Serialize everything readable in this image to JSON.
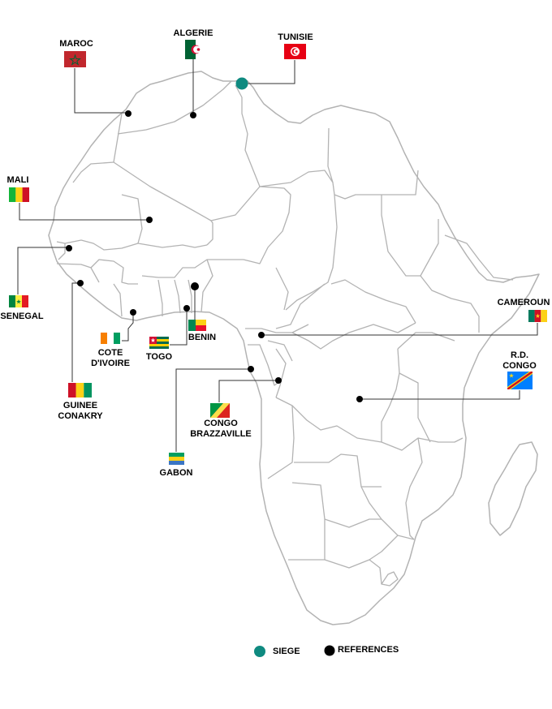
{
  "countries": {
    "maroc": {
      "label": "MAROC",
      "flag_colors": [
        "#c1272d",
        "#006233"
      ]
    },
    "algerie": {
      "label": "ALGERIE",
      "flag_colors": [
        "#006233",
        "#ffffff",
        "#d21034"
      ]
    },
    "tunisie": {
      "label": "TUNISIE",
      "flag_colors": [
        "#e70013",
        "#ffffff"
      ]
    },
    "mali": {
      "label": "MALI",
      "flag_colors": [
        "#14b53a",
        "#fcd116",
        "#ce1126"
      ]
    },
    "senegal": {
      "label": "SENEGAL",
      "flag_colors": [
        "#00853f",
        "#fdef42",
        "#e31b23"
      ]
    },
    "cote_divoire": {
      "line1": "COTE",
      "line2": "D'IVOIRE",
      "flag_colors": [
        "#f77f00",
        "#ffffff",
        "#009e60"
      ]
    },
    "guinee": {
      "line1": "GUINEE",
      "line2": "CONAKRY",
      "flag_colors": [
        "#ce1126",
        "#fcd116",
        "#009460"
      ]
    },
    "togo": {
      "label": "TOGO",
      "flag_colors": [
        "#006a4e",
        "#ffce00",
        "#d21034"
      ]
    },
    "benin": {
      "label": "BENIN",
      "flag_colors": [
        "#008751",
        "#fcd116",
        "#e8112d"
      ]
    },
    "cameroun": {
      "label": "CAMEROUN",
      "flag_colors": [
        "#007a5e",
        "#ce1126",
        "#fcd116"
      ]
    },
    "rd_congo": {
      "line1": "R.D.",
      "line2": "CONGO",
      "flag_colors": [
        "#007fff",
        "#f7d618",
        "#ce1021"
      ]
    },
    "congo_brazzaville": {
      "line1": "CONGO",
      "line2": "BRAZZAVILLE",
      "flag_colors": [
        "#009543",
        "#fbde4a",
        "#dc241f"
      ]
    },
    "gabon": {
      "label": "GABON",
      "flag_colors": [
        "#009e60",
        "#fcd116",
        "#3a75c4"
      ]
    }
  },
  "legend": {
    "siege_label": "SIEGE",
    "references_label": "REFERENCES",
    "siege_color": "#0f8a80",
    "reference_color": "#000000"
  },
  "map_colors": {
    "border": "#b3b3b3",
    "land": "#ffffff",
    "leader_line": "#333333"
  }
}
